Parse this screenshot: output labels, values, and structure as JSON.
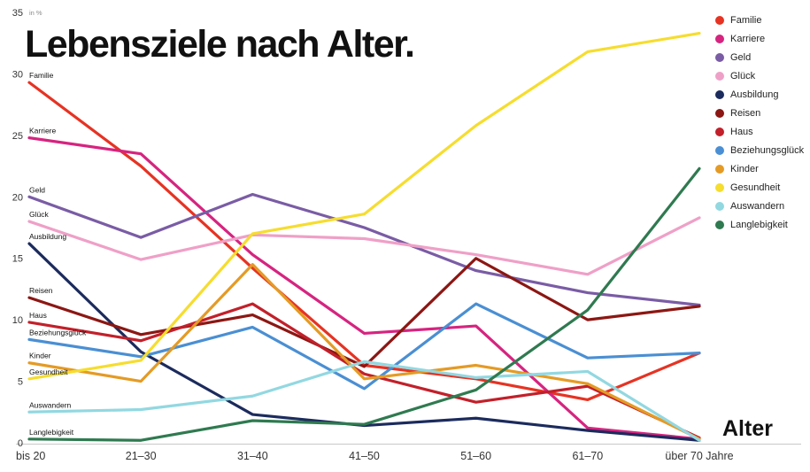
{
  "title": "Lebensziele nach Alter.",
  "y_axis": {
    "unit_label": "in %",
    "ticks": [
      0,
      5,
      10,
      15,
      20,
      25,
      30,
      35
    ]
  },
  "x_axis": {
    "label": "Alter",
    "categories": [
      "bis 20",
      "21–30",
      "31–40",
      "41–50",
      "51–60",
      "61–70",
      "über 70 Jahre"
    ]
  },
  "chart_data": {
    "type": "line",
    "title": "Lebensziele nach Alter.",
    "xlabel": "Alter",
    "ylabel": "in %",
    "ylim": [
      0,
      35
    ],
    "grid": false,
    "legend_position": "top-right",
    "categories": [
      "bis 20",
      "21–30",
      "31–40",
      "41–50",
      "51–60",
      "61–70",
      "über 70 Jahre"
    ],
    "series": [
      {
        "name": "Familie",
        "color": "#e63323",
        "values": [
          29.3,
          22.5,
          14.2,
          6.3,
          5.2,
          3.5,
          7.3
        ]
      },
      {
        "name": "Karriere",
        "color": "#d62480",
        "values": [
          24.8,
          23.5,
          15.3,
          8.9,
          9.5,
          1.2,
          0.3
        ]
      },
      {
        "name": "Geld",
        "color": "#7a5ca5",
        "values": [
          20.0,
          16.7,
          20.2,
          17.5,
          14.0,
          12.2,
          11.2
        ]
      },
      {
        "name": "Glück",
        "color": "#efa0c7",
        "values": [
          18.0,
          14.9,
          16.9,
          16.6,
          15.3,
          13.7,
          18.3
        ]
      },
      {
        "name": "Ausbildung",
        "color": "#1c2b5d",
        "values": [
          16.2,
          7.4,
          2.3,
          1.4,
          2.0,
          1.0,
          0.2
        ]
      },
      {
        "name": "Reisen",
        "color": "#8c1713",
        "values": [
          11.8,
          8.8,
          10.4,
          6.2,
          15.0,
          10.0,
          11.1
        ]
      },
      {
        "name": "Haus",
        "color": "#c2202a",
        "values": [
          9.8,
          8.3,
          11.3,
          5.6,
          3.3,
          4.6,
          0.4
        ]
      },
      {
        "name": "Beziehungsglück",
        "color": "#4a8fd3",
        "values": [
          8.4,
          7.0,
          9.4,
          4.4,
          11.3,
          6.9,
          7.3
        ]
      },
      {
        "name": "Kinder",
        "color": "#e49b25",
        "values": [
          6.5,
          5.0,
          14.5,
          5.2,
          6.3,
          4.8,
          0.3
        ]
      },
      {
        "name": "Gesundheit",
        "color": "#f6dd2e",
        "values": [
          5.2,
          6.7,
          17.0,
          18.6,
          25.8,
          31.8,
          33.3
        ]
      },
      {
        "name": "Auswandern",
        "color": "#92d8e1",
        "values": [
          2.5,
          2.7,
          3.8,
          6.6,
          5.3,
          5.8,
          0.2
        ]
      },
      {
        "name": "Langlebigkeit",
        "color": "#2f7a50",
        "values": [
          0.3,
          0.2,
          1.8,
          1.5,
          4.3,
          10.8,
          22.3
        ]
      }
    ]
  }
}
